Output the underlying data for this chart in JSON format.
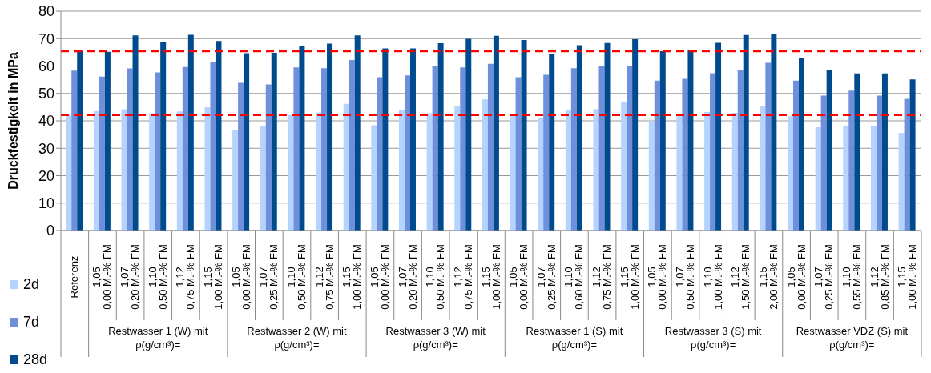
{
  "chart_data": {
    "type": "bar",
    "ylabel": "Druckfestigkeit in MPa",
    "categories": [
      "Referenz",
      "1,05\n0,00 M.-% FM",
      "1,07\n0,20 M.-% FM",
      "1,10\n0,50 M.-% FM",
      "1,12\n0,75 M.-% FM",
      "1,15\n1,00 M.-% FM",
      "1,05\n0,00 M.-% FM",
      "1,07\n0,25 M.-% FM",
      "1,10\n0,50 M.-% FM",
      "1,12\n0,75 M.-% FM",
      "1,15\n1,00 M.-% FM",
      "1,05\n0,00 M.-% FM",
      "1,07\n0,20 M.-% FM",
      "1,10\n0,50 M.-% FM",
      "1,12\n0,75 M.-% FM",
      "1,15\n1,00 M.-% FM",
      "1,05\n0,00 M.-% FM",
      "1,07\n0,25 M.-% FM",
      "1,10\n0,60 M.-% FM",
      "1,12\n0,75 M.-% FM",
      "1,15\n1,00 M.-% FM",
      "1,05\n0,00 M.-% FM",
      "1,07\n0,50 M.-% FM",
      "1,10\n1,00 M.-% FM",
      "1,12\n1,50 M.-% FM",
      "1,15\n2,00 M.-% FM",
      "1,05\n0,00 M.-% FM",
      "1,07\n0,25 M.-% FM",
      "1,10\n0,55 M.-% FM",
      "1,12\n0,85 M.-% FM",
      "1,15\n1,00 M.-% FM"
    ],
    "series": [
      {
        "name": "2d",
        "color": "#b4d3ff",
        "values": [
          42.1,
          43.6,
          44.2,
          42.8,
          43.4,
          45.0,
          36.5,
          38.0,
          42.1,
          43.1,
          46.2,
          38.4,
          44.0,
          42.8,
          45.3,
          47.8,
          42.1,
          41.0,
          44.0,
          44.3,
          47.0,
          39.9,
          41.7,
          43.2,
          42.9,
          45.4,
          41.7,
          37.7,
          38.3,
          38.1,
          35.6
        ]
      },
      {
        "name": "7d",
        "color": "#6e8fdc",
        "values": [
          58.3,
          56.1,
          59.1,
          57.7,
          59.6,
          61.5,
          53.9,
          53.3,
          59.5,
          59.2,
          62.2,
          55.9,
          56.6,
          59.9,
          59.5,
          60.8,
          55.9,
          56.8,
          59.2,
          60.1,
          60.0,
          54.7,
          55.3,
          57.4,
          58.6,
          61.2,
          54.7,
          49.2,
          51.0,
          49.2,
          48.0
        ]
      },
      {
        "name": "28d",
        "color": "#004a8e",
        "values": [
          65.6,
          65.2,
          71.2,
          68.6,
          71.4,
          69.1,
          64.7,
          64.8,
          67.3,
          68.2,
          71.2,
          66.4,
          66.4,
          68.3,
          69.9,
          71.0,
          69.5,
          64.5,
          67.6,
          68.4,
          69.8,
          65.4,
          66.0,
          68.5,
          71.3,
          71.6,
          62.8,
          58.7,
          57.3,
          57.3,
          55.1
        ]
      }
    ],
    "annotations": [
      "Restwasser 1 (W) mit\nρ(g/cm³)=",
      "Restwasser 2 (W) mit\nρ(g/cm³)=",
      "Restwasser 3 (W) mit\nρ(g/cm³)=",
      "Restwasser 1 (S) mit\nρ(g/cm³)=",
      "Restwasser 3 (S) mit\nρ(g/cm³)=",
      "Restwasser VDZ (S) mit\nρ(g/cm³)="
    ],
    "ylim": [
      0,
      80
    ],
    "yticks": [
      0,
      10,
      20,
      30,
      40,
      50,
      60,
      70,
      80
    ],
    "ref_lines": [
      {
        "axis": "y",
        "value": 65.5,
        "color": "#ff0000",
        "line_style": "dashed"
      },
      {
        "axis": "y",
        "value": 42.2,
        "color": "#ff0000",
        "line_style": "dashed"
      }
    ],
    "grid": "y",
    "legend": "left"
  }
}
